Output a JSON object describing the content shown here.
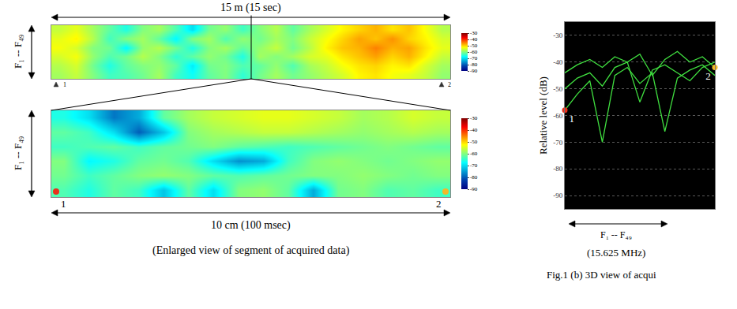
{
  "chart_data": [
    {
      "type": "heatmap",
      "title": "15 m (15 sec)",
      "y_label": "F₁ -- F₄₉",
      "tick_labels": false,
      "end_labels": [
        "1",
        "2"
      ],
      "z": [
        [
          -56,
          -54,
          -58,
          -62,
          -66,
          -60,
          -58,
          -63,
          -70,
          -61,
          -59,
          -64,
          -60,
          -57,
          -62,
          -58,
          -55,
          -52,
          -50,
          -48,
          -51,
          -49,
          -53,
          -57
        ],
        [
          -54,
          -52,
          -57,
          -64,
          -60,
          -58,
          -62,
          -68,
          -60,
          -58,
          -63,
          -59,
          -61,
          -58,
          -60,
          -56,
          -53,
          -50,
          -47,
          -49,
          -46,
          -50,
          -52,
          -55
        ],
        [
          -53,
          -55,
          -60,
          -61,
          -68,
          -59,
          -57,
          -61,
          -66,
          -60,
          -58,
          -62,
          -59,
          -56,
          -61,
          -57,
          -52,
          -49,
          -48,
          -45,
          -48,
          -47,
          -51,
          -54
        ],
        [
          -55,
          -53,
          -59,
          -63,
          -61,
          -57,
          -60,
          -65,
          -62,
          -59,
          -61,
          -66,
          -58,
          -60,
          -58,
          -55,
          -54,
          -51,
          -49,
          -47,
          -50,
          -48,
          -52,
          -56
        ],
        [
          -57,
          -55,
          -61,
          -66,
          -62,
          -60,
          -59,
          -62,
          -69,
          -61,
          -60,
          -63,
          -62,
          -59,
          -63,
          -58,
          -56,
          -53,
          -51,
          -50,
          -52,
          -51,
          -55,
          -58
        ],
        [
          -58,
          -56,
          -60,
          -64,
          -63,
          -61,
          -58,
          -64,
          -67,
          -62,
          -60,
          -65,
          -61,
          -58,
          -61,
          -59,
          -57,
          -55,
          -52,
          -51,
          -53,
          -54,
          -56,
          -59
        ]
      ],
      "colorbar": {
        "range": [
          -90,
          -30
        ],
        "ticks": [
          -30,
          -40,
          -50,
          -60,
          -70,
          -80,
          -90
        ]
      }
    },
    {
      "type": "heatmap",
      "title": "10 cm (100 msec)",
      "caption": "(Enlarged view of segment of acquired data)",
      "y_label": "F₁ -- F₄₉",
      "tick_labels": false,
      "points": [
        {
          "label": "1",
          "color": "#e8301c"
        },
        {
          "label": "2",
          "color": "#f2b82a"
        }
      ],
      "z": [
        [
          -66,
          -70,
          -78,
          -74,
          -62,
          -58,
          -56,
          -55,
          -54,
          -54,
          -55,
          -56,
          -58,
          -57,
          -55,
          -56
        ],
        [
          -62,
          -64,
          -70,
          -80,
          -72,
          -60,
          -58,
          -57,
          -56,
          -56,
          -57,
          -58,
          -59,
          -58,
          -57,
          -58
        ],
        [
          -64,
          -63,
          -62,
          -64,
          -62,
          -61,
          -60,
          -62,
          -63,
          -64,
          -63,
          -62,
          -61,
          -60,
          -61,
          -62
        ],
        [
          -60,
          -68,
          -66,
          -62,
          -61,
          -63,
          -70,
          -76,
          -74,
          -64,
          -60,
          -59,
          -60,
          -61,
          -60,
          -59
        ],
        [
          -61,
          -64,
          -62,
          -60,
          -59,
          -60,
          -62,
          -63,
          -62,
          -61,
          -60,
          -60,
          -59,
          -60,
          -61,
          -60
        ],
        [
          -63,
          -66,
          -62,
          -64,
          -72,
          -62,
          -70,
          -60,
          -59,
          -62,
          -74,
          -61,
          -60,
          -63,
          -62,
          -64
        ]
      ],
      "colorbar": {
        "range": [
          -90,
          -30
        ],
        "ticks": [
          -30,
          -40,
          -50,
          -60,
          -70,
          -80,
          -90
        ]
      }
    },
    {
      "type": "line",
      "y_label": "Relative level (dB)",
      "x_label": "F₁ -- F₄₉",
      "subtitle": "(15.625 MHz)",
      "caption": "Fig.1 (b) 3D view of acqui",
      "tick_labels": "y",
      "grid": true,
      "x": [
        1,
        5,
        9,
        13,
        17,
        21,
        25,
        29,
        33,
        37,
        41,
        45,
        49
      ],
      "series": [
        {
          "color": "#40e040",
          "values": [
            -58,
            -52,
            -47,
            -70,
            -45,
            -42,
            -48,
            -44,
            -66,
            -46,
            -43,
            -41,
            -45
          ]
        },
        {
          "color": "#40e040",
          "values": [
            -50,
            -46,
            -44,
            -49,
            -42,
            -40,
            -55,
            -43,
            -41,
            -44,
            -47,
            -42,
            -40
          ]
        },
        {
          "color": "#40e040",
          "values": [
            -44,
            -41,
            -39,
            -42,
            -38,
            -40,
            -37,
            -45,
            -39,
            -36,
            -40,
            -38,
            -42
          ]
        }
      ],
      "points": [
        {
          "label": "1",
          "color": "#e8301c"
        },
        {
          "label": "2",
          "color": "#f2b82a"
        }
      ],
      "xlim": [
        1,
        49
      ],
      "ylim": [
        -95,
        -25
      ],
      "yticks": [
        -30,
        -40,
        -50,
        -60,
        -70,
        -80,
        -90
      ]
    }
  ]
}
